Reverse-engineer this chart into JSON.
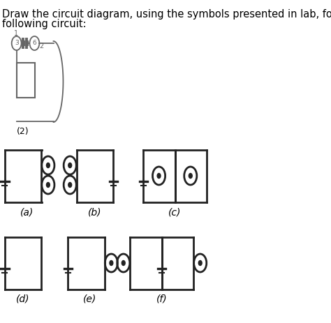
{
  "title_line1": "Draw the circuit diagram, using the symbols presented in lab, for the",
  "title_line2": "following circuit:",
  "bg_color": "#ffffff",
  "text_color": "#000000",
  "labels": [
    "(a)",
    "(b)",
    "(c)",
    "(d)",
    "(e)",
    "(f)"
  ],
  "sketch_label": "(2)",
  "lw": 2.0,
  "font_size": 10.5
}
